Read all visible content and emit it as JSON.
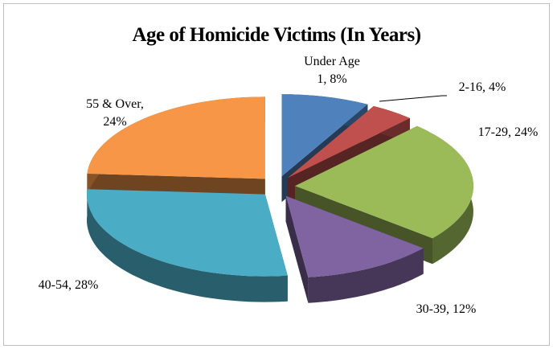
{
  "chart_data": {
    "type": "pie3d",
    "title": "Age of Homicide Victims (In Years)",
    "categories": [
      "Under Age 1",
      "2-16",
      "17-29",
      "30-39",
      "40-54",
      "55 & Over"
    ],
    "values": [
      8,
      4,
      24,
      12,
      28,
      24
    ],
    "value_labels": [
      "8%",
      "4%",
      "24%",
      "12%",
      "28%",
      "24%"
    ],
    "colors": [
      "#4f81bd",
      "#c0504d",
      "#9bbb59",
      "#8064a2",
      "#4bacc6",
      "#f79646"
    ]
  }
}
